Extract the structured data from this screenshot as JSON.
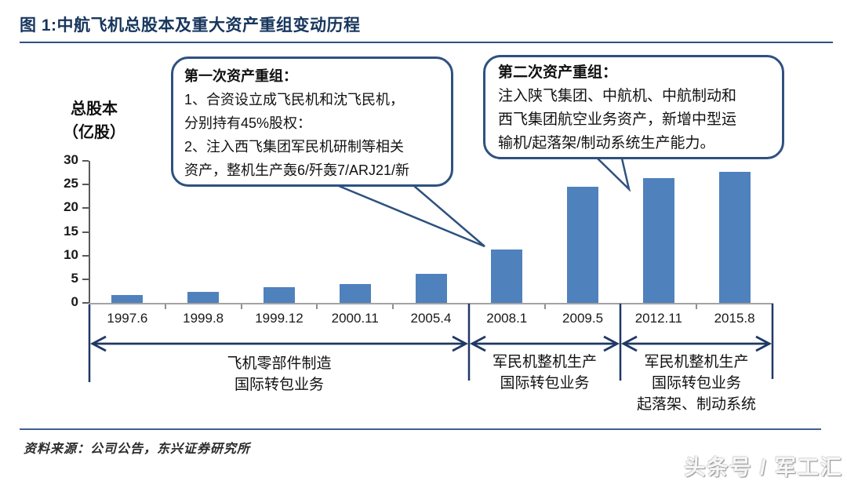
{
  "title": "图 1:中航飞机总股本及重大资产重组变动历程",
  "source": "资料来源：公司公告，东兴证券研究所",
  "watermark": "头条号 / 军工汇",
  "colors": {
    "navy": "#1f3864",
    "title_navy": "#17365d",
    "bar_blue": "#4f81bd",
    "axis_dark": "#595959",
    "axis_light": "#a3a3a3"
  },
  "chart_data": {
    "type": "bar",
    "title": "中航飞机总股本及重大资产重组变动历程",
    "categories": [
      "1997.6",
      "1999.8",
      "1999.12",
      "2000.11",
      "2005.4",
      "2008.1",
      "2009.5",
      "2012.11",
      "2015.8"
    ],
    "values": [
      1.7,
      2.3,
      3.4,
      3.9,
      6.2,
      11.3,
      24.6,
      26.4,
      27.6
    ],
    "ylabel_lines": [
      "总股本",
      "（亿股）"
    ],
    "ylim": [
      0,
      30
    ],
    "yticks": [
      30,
      25,
      20,
      15,
      10,
      5,
      0
    ],
    "grid": false,
    "legend": null,
    "bar_color": "#4f81bd",
    "annotations": [
      {
        "heading": "第一次资产重组：",
        "lines": [
          "1、合资设立成飞民机和沈飞民机，",
          "分别持有45%股权：",
          "2、注入西飞集团军民机研制等相关",
          "资产，整机生产轰6/歼轰7/ARJ21/新"
        ],
        "points_to_category": "2008.1"
      },
      {
        "heading": "第二次资产重组：",
        "lines": [
          "注入陕飞集团、中航机、中航制动和",
          "西飞集团航空业务资产，新增中型运",
          "输机/起落架/制动系统生产能力。"
        ],
        "points_to_category": "2012.11"
      }
    ],
    "phase_spans": [
      {
        "from": "1997.6",
        "to": "2005.4",
        "lines": [
          "飞机零部件制造",
          "国际转包业务"
        ]
      },
      {
        "from": "2008.1",
        "to": "2009.5",
        "lines": [
          "军民机整机生产",
          "国际转包业务"
        ]
      },
      {
        "from": "2012.11",
        "to": "2015.8",
        "lines": [
          "军民机整机生产",
          "国际转包业务",
          "起落架、制动系统"
        ]
      }
    ]
  }
}
